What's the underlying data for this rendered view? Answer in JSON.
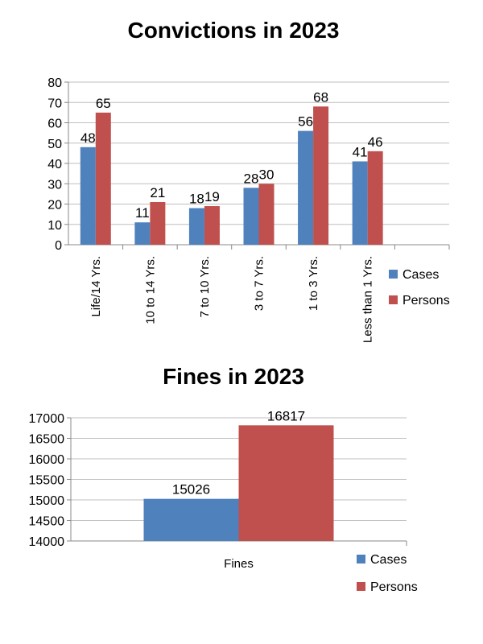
{
  "colors": {
    "cases": "#4F81BD",
    "persons": "#C0504D",
    "grid": "#BFBFBF",
    "axis": "#888888"
  },
  "chart_data": [
    {
      "type": "bar",
      "title": "Convictions in 2023",
      "categories": [
        "Life/14 Yrs.",
        "10 to 14 Yrs.",
        "7 to 10 Yrs.",
        "3 to 7 Yrs.",
        "1 to 3 Yrs.",
        "Less than 1 Yrs."
      ],
      "series": [
        {
          "name": "Cases",
          "values": [
            48,
            11,
            18,
            28,
            56,
            41
          ]
        },
        {
          "name": "Persons",
          "values": [
            65,
            21,
            19,
            30,
            68,
            46
          ]
        }
      ],
      "ylim": [
        0,
        80
      ],
      "yticks": [
        0,
        10,
        20,
        30,
        40,
        50,
        60,
        70,
        80
      ],
      "grid": true,
      "legend": "right"
    },
    {
      "type": "bar",
      "title": "Fines in 2023",
      "categories": [
        "Fines"
      ],
      "series": [
        {
          "name": "Cases",
          "values": [
            15026
          ]
        },
        {
          "name": "Persons",
          "values": [
            16817
          ]
        }
      ],
      "ylim": [
        14000,
        17000
      ],
      "yticks": [
        14000,
        14500,
        15000,
        15500,
        16000,
        16500,
        17000
      ],
      "grid": true,
      "legend": "bottom-right"
    }
  ]
}
